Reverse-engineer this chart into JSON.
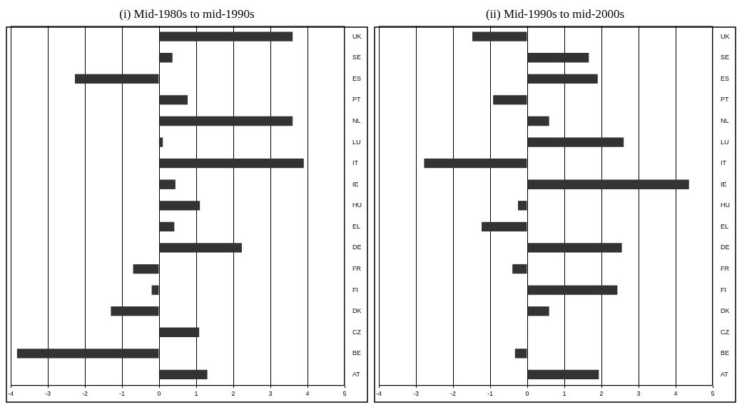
{
  "chart_data": [
    {
      "type": "bar",
      "orientation": "horizontal",
      "title": "(i) Mid-1980s to mid-1990s",
      "categories": [
        "UK",
        "SE",
        "ES",
        "PT",
        "NL",
        "LU",
        "IT",
        "IE",
        "HU",
        "EL",
        "DE",
        "FR",
        "FI",
        "DK",
        "CZ",
        "BE",
        "AT"
      ],
      "values": [
        3.6,
        0.36,
        -2.27,
        0.77,
        3.6,
        0.1,
        3.9,
        0.44,
        1.1,
        0.41,
        2.23,
        -0.7,
        -0.2,
        -1.3,
        1.08,
        -3.83,
        1.3
      ],
      "color": "#333333",
      "xlim": [
        -4,
        5
      ],
      "xticks": [
        -4,
        -3,
        -2,
        -1,
        0,
        1,
        2,
        3,
        4,
        5
      ],
      "grid": "x"
    },
    {
      "type": "bar",
      "orientation": "horizontal",
      "title": "(ii) Mid-1990s to mid-2000s",
      "categories": [
        "UK",
        "SE",
        "ES",
        "PT",
        "NL",
        "LU",
        "IT",
        "IE",
        "HU",
        "EL",
        "DE",
        "FR",
        "FI",
        "DK",
        "CZ",
        "BE",
        "AT"
      ],
      "values": [
        -1.48,
        1.66,
        1.9,
        -0.92,
        0.59,
        2.6,
        -2.78,
        4.36,
        -0.25,
        -1.23,
        2.55,
        -0.4,
        2.43,
        0.59,
        -0.01,
        -0.33,
        1.93
      ],
      "color": "#333333",
      "xlim": [
        -4,
        5
      ],
      "xticks": [
        -4,
        -3,
        -2,
        -1,
        0,
        1,
        2,
        3,
        4,
        5
      ],
      "grid": "x"
    }
  ]
}
